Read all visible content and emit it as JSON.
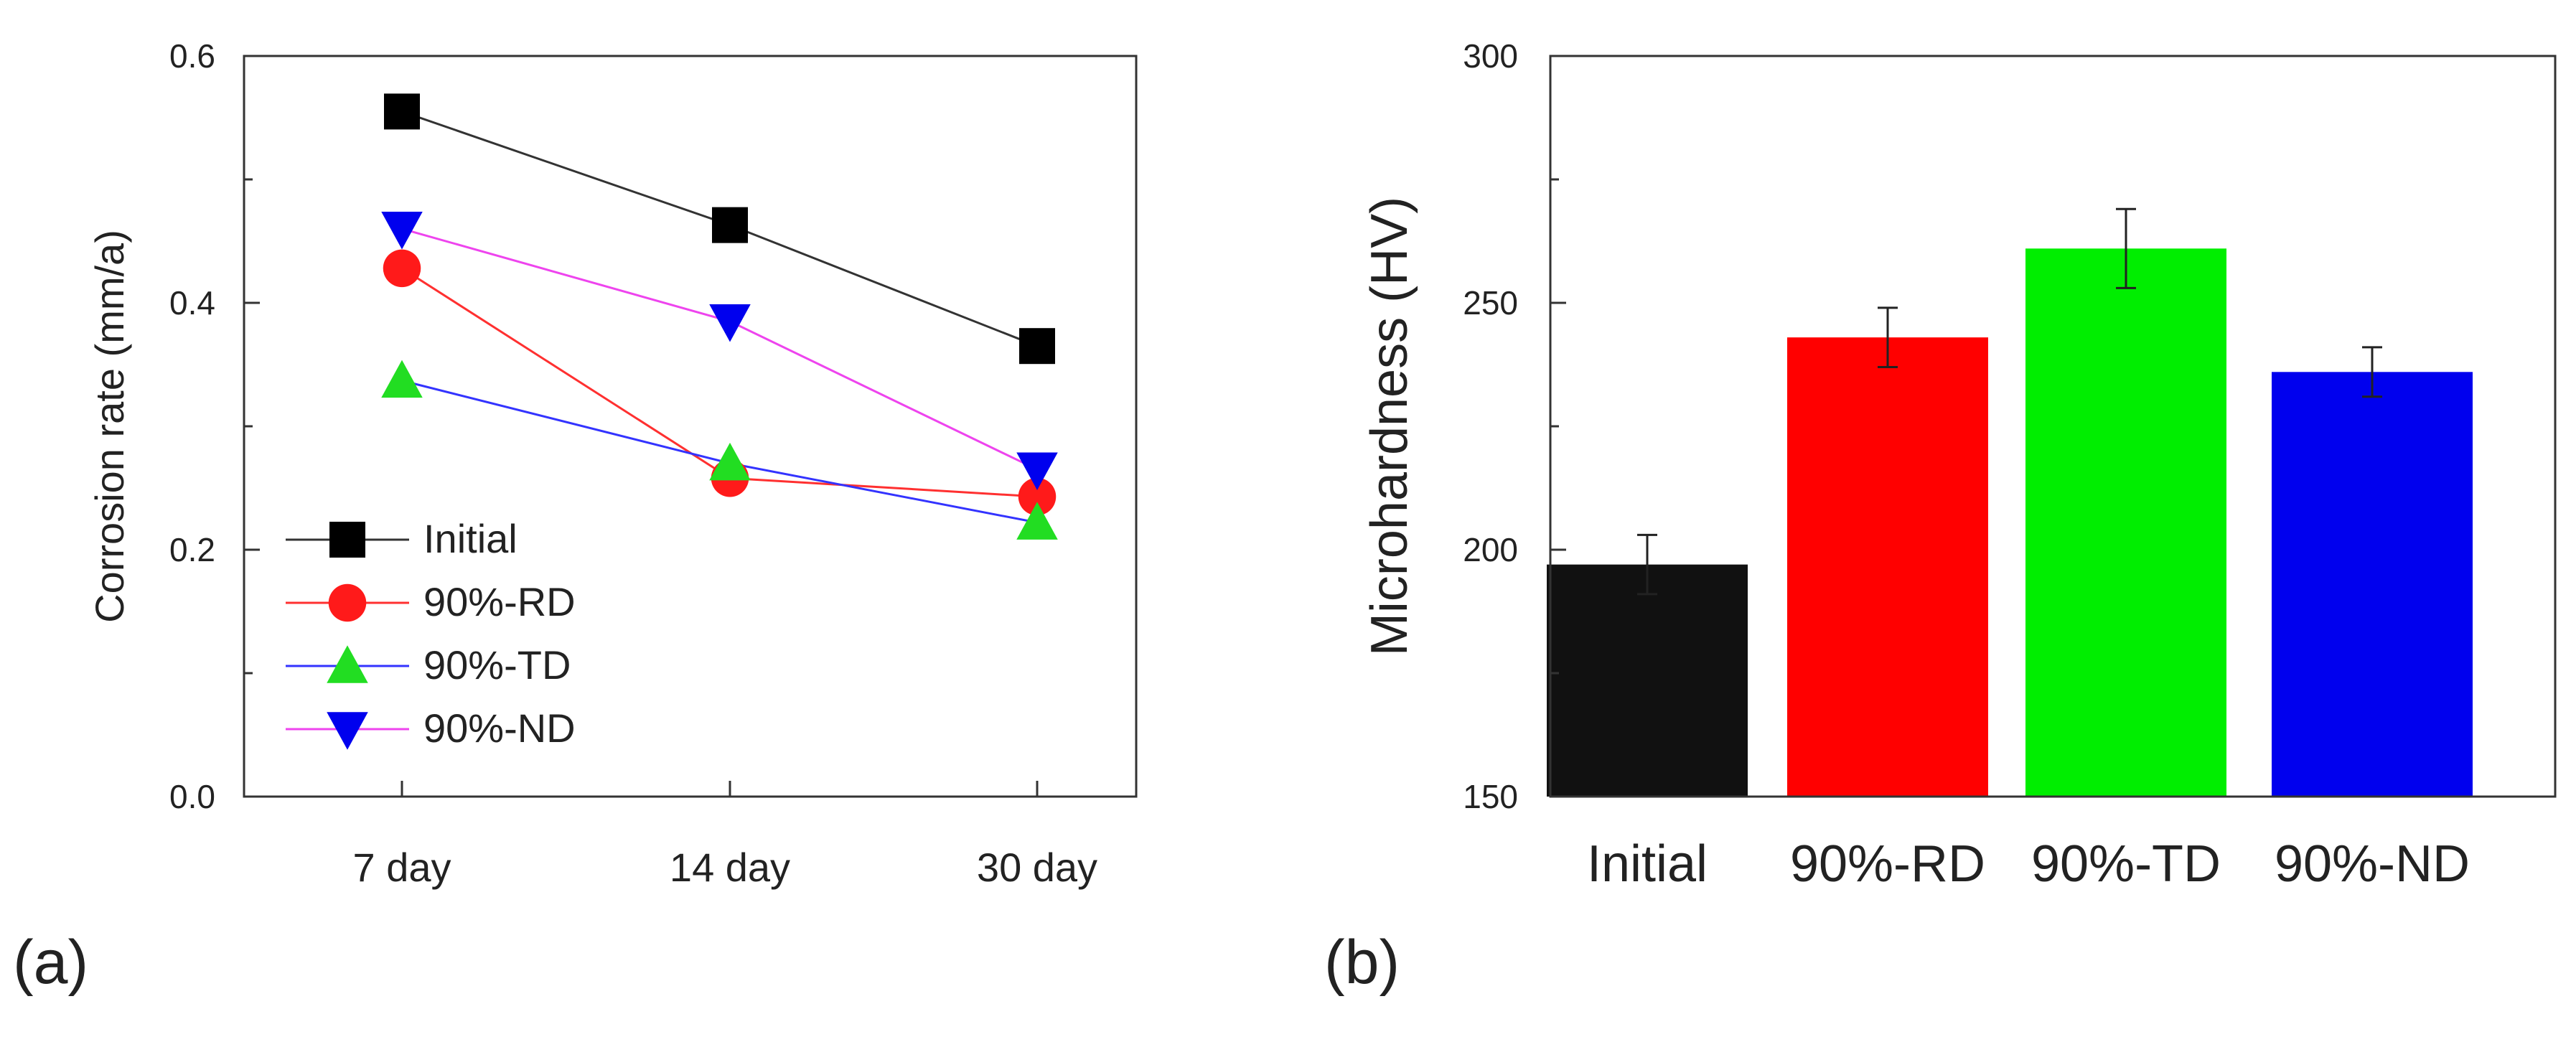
{
  "chart_data": [
    {
      "panel_label": "(a)",
      "type": "line",
      "categories": [
        "7 day",
        "14 day",
        "30 day"
      ],
      "ylabel": "Corrosion rate (mm/a)",
      "xlabel": "",
      "ylim": [
        0.0,
        0.6
      ],
      "yticks": [
        "0.0",
        "0.2",
        "0.4",
        "0.6"
      ],
      "legend_position": "bottom-left",
      "series": [
        {
          "name": "Initial",
          "values": [
            0.555,
            0.463,
            0.365
          ],
          "marker": "square",
          "color": "#000000",
          "line_color": "#333333"
        },
        {
          "name": "90%-RD",
          "values": [
            0.428,
            0.258,
            0.243
          ],
          "marker": "circle",
          "color": "#ff1a1a",
          "line_color": "#ff3030"
        },
        {
          "name": "90%-TD",
          "values": [
            0.337,
            0.27,
            0.222
          ],
          "marker": "triangle-up",
          "color": "#22dd22",
          "line_color": "#3333ff"
        },
        {
          "name": "90%-ND",
          "values": [
            0.46,
            0.385,
            0.265
          ],
          "marker": "triangle-down",
          "color": "#0000ee",
          "line_color": "#ee44ee"
        }
      ]
    },
    {
      "panel_label": "(b)",
      "type": "bar",
      "categories": [
        "Initial",
        "90%-RD",
        "90%-TD",
        "90%-ND"
      ],
      "values": [
        197,
        243,
        261,
        236
      ],
      "errors": [
        6,
        6,
        8,
        5
      ],
      "colors": [
        "#111111",
        "#ff0000",
        "#00ee00",
        "#0000ee"
      ],
      "ylabel": "Microhardness (HV)",
      "xlabel": "",
      "ylim": [
        150,
        300
      ],
      "yticks": [
        "150",
        "200",
        "250",
        "300"
      ]
    }
  ]
}
